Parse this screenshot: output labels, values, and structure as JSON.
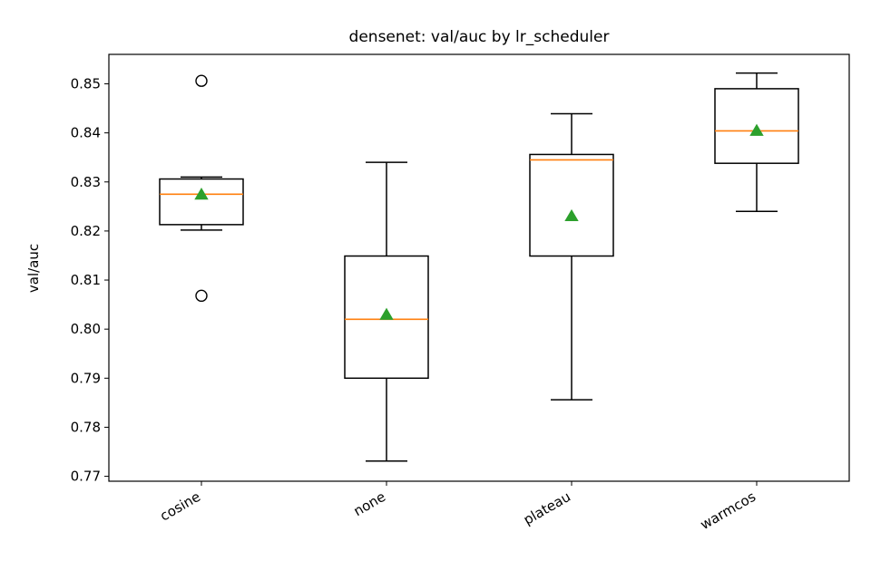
{
  "chart_data": {
    "type": "box",
    "title": "densenet: val/auc by lr_scheduler",
    "xlabel": "",
    "ylabel": "val/auc",
    "ylim": [
      0.769,
      0.856
    ],
    "yticks": [
      0.77,
      0.78,
      0.79,
      0.8,
      0.81,
      0.82,
      0.83,
      0.84,
      0.85
    ],
    "ytick_labels": [
      "0.77",
      "0.78",
      "0.79",
      "0.80",
      "0.81",
      "0.82",
      "0.83",
      "0.84",
      "0.85"
    ],
    "categories": [
      "cosine",
      "none",
      "plateau",
      "warmcos"
    ],
    "boxes": [
      {
        "category": "cosine",
        "whisker_low": 0.8202,
        "q1": 0.8213,
        "median": 0.8275,
        "q3": 0.8306,
        "whisker_high": 0.831,
        "mean": 0.8274,
        "outliers": [
          0.8506,
          0.8068
        ]
      },
      {
        "category": "none",
        "whisker_low": 0.7731,
        "q1": 0.79,
        "median": 0.802,
        "q3": 0.8149,
        "whisker_high": 0.834,
        "mean": 0.8029,
        "outliers": []
      },
      {
        "category": "plateau",
        "whisker_low": 0.7856,
        "q1": 0.8149,
        "median": 0.8345,
        "q3": 0.8356,
        "whisker_high": 0.8439,
        "mean": 0.823,
        "outliers": []
      },
      {
        "category": "warmcos",
        "whisker_low": 0.824,
        "q1": 0.8338,
        "median": 0.8404,
        "q3": 0.849,
        "whisker_high": 0.8522,
        "mean": 0.8404,
        "outliers": []
      }
    ],
    "colors": {
      "box": "#000000",
      "median": "#ff7f0e",
      "mean": "#2ca02c",
      "outlier": "#000000"
    },
    "grid": false,
    "show_means": true
  }
}
